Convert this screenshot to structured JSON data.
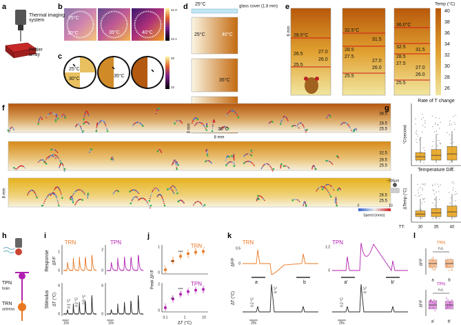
{
  "panels": {
    "a": {
      "label": "a",
      "texts": [
        "Thermal imaging",
        "system",
        "Peltier",
        "array"
      ]
    },
    "b": {
      "label": "b",
      "texts": [
        "25°C",
        "30°C",
        "35°C",
        "40°C",
        "41.0",
        "22.1"
      ]
    },
    "c": {
      "label": "c",
      "texts": [
        "25°C",
        "30°C",
        "35°C",
        "40°C",
        "40",
        "22"
      ]
    },
    "d": {
      "label": "d",
      "texts": [
        "25°C",
        "glass cover (1.8 mm)",
        "25°C",
        "40°C",
        "35°C",
        "30°C",
        "3 mm",
        "8 mm"
      ]
    },
    "e": {
      "label": "e",
      "texts": [
        "6 mm",
        "28.5°C",
        "26.5",
        "27.0",
        "26.0",
        "25.5",
        "32.5°C",
        "31.5",
        "28.5",
        "27.5",
        "27.0",
        "26.0",
        "25.5",
        "36.0°C",
        "32.5",
        "31.5",
        "28.5",
        "27.5",
        "27.0",
        "26.0",
        "25.5",
        "Temp (°C)",
        "40",
        "38",
        "36",
        "34",
        "32",
        "30",
        "28",
        "26"
      ]
    },
    "f": {
      "label": "f",
      "texts": [
        "38.5",
        "28.5",
        "25.5",
        "32.5",
        "28.5",
        "25.5",
        "26.5",
        "25.5",
        "8 mm",
        "0",
        "10",
        "Speed (mm/s)"
      ]
    },
    "g": {
      "label": "g",
      "texts": [
        "Rate of T change",
        "°C/second",
        "Temperature Diff.",
        "~300μm",
        "ΔTemp (°C)",
        "TT:",
        "30",
        "35",
        "40"
      ]
    },
    "h": {
      "label": "h",
      "texts": [
        "TPN",
        "brain",
        "TRN",
        "antenna"
      ]
    },
    "i": {
      "label": "i",
      "texts": [
        "TRN",
        "TPN",
        "Response",
        "Stimulus",
        "ΔF/F",
        "ΔT (°C)",
        "0.1 °C",
        "0.2 °C",
        "0.5 °C",
        "10s",
        "10s",
        "1",
        "0",
        "2",
        "0",
        "6",
        "0",
        "6",
        "0"
      ]
    },
    "j": {
      "label": "j",
      "texts": [
        "TRN",
        "TPN",
        "Peak ΔF/F",
        "ΔT (°C)",
        "**",
        "***",
        "**",
        "***",
        "0.1",
        "1",
        "10",
        "1",
        "0",
        "2",
        "0"
      ]
    },
    "k": {
      "label": "k",
      "texts": [
        "TRN",
        "TPN",
        "ΔF/F",
        "ΔT (°C)",
        "a",
        "b",
        "a'",
        "b'",
        "0.2 °C",
        "6 °C",
        "0.2 °C",
        "6 °C",
        "20s",
        "25s",
        "0.5",
        "0",
        "1.2",
        "0"
      ]
    },
    "l": {
      "label": "l",
      "texts": [
        "TRN",
        "n.s.",
        "ΔF/F",
        "a",
        "b",
        "TPN",
        "n.s.",
        "ΔF/F",
        "a'",
        "b'"
      ]
    }
  }
}
